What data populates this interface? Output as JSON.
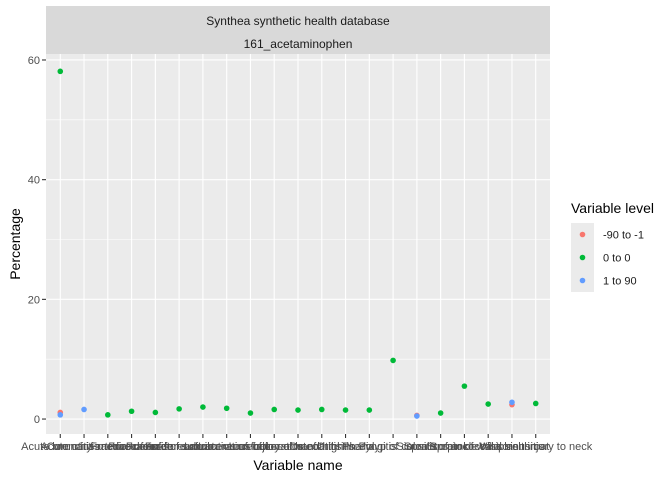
{
  "chart_data": {
    "type": "scatter",
    "facet_labels": [
      "Synthea synthetic health database",
      "161_acetaminophen"
    ],
    "xlabel": "Variable name",
    "ylabel": "Percentage",
    "ylim": [
      -2.5,
      61
    ],
    "y_ticks": [
      0,
      20,
      40,
      60
    ],
    "grid": true,
    "legend": {
      "title": "Variable level",
      "position": "right"
    },
    "categories": [
      "Acute bronchitis",
      "Acute otitis media",
      "Coronary arteriosclerosis",
      "Fracture of ankle",
      "Fracture of forearm",
      "Fracture of rib",
      "Fracture of subcutaneous injury",
      "Laceration of foot",
      "Laceration of forearm",
      "Laceration of hand",
      "Laceration of thigh",
      "Osteoarthritis",
      "Otitis media",
      "Pharyngitis",
      "Polyp of colon",
      "Sinusitis",
      "Sprain of ankle",
      "Sprain of wrist",
      "Streptococcal sore throat",
      "Viral sinusitis",
      "Whiplash injury to neck"
    ],
    "visible_tick_text": [
      "Acute bronchitis",
      "Acute otitis media",
      "Coronary arteriosclerosis",
      "Fracture of ankle",
      "Fracture of forearm",
      "Fracture of rib",
      "Fracture of subcutaneous injury",
      "Laceration of foot",
      "Laceration of forearm",
      "Laceration of hand",
      "Laceration of thigh",
      "Osteoarthritis",
      "Otitis media",
      "Pharyngitis",
      "Polyp of colon",
      "Sinusitis",
      "Sprain of ankle",
      "Sprain of wrist",
      "Streptococcal sore throat",
      "Viral sinusitis",
      "Whiplash injury to neck"
    ],
    "series": [
      {
        "name": "-90 to -1",
        "color": "#F8766D",
        "points": [
          {
            "x": "Acute bronchitis",
            "y": 1.1
          },
          {
            "x": "Sinusitis",
            "y": 0.6
          },
          {
            "x": "Viral sinusitis",
            "y": 2.4
          }
        ]
      },
      {
        "name": "0 to 0",
        "color": "#00BA38",
        "points": [
          {
            "x": "Acute bronchitis",
            "y": 58.1
          },
          {
            "x": "Coronary arteriosclerosis",
            "y": 0.7
          },
          {
            "x": "Fracture of ankle",
            "y": 1.3
          },
          {
            "x": "Fracture of forearm",
            "y": 1.1
          },
          {
            "x": "Fracture of rib",
            "y": 1.7
          },
          {
            "x": "Fracture of subcutaneous injury",
            "y": 2.0
          },
          {
            "x": "Laceration of foot",
            "y": 1.8
          },
          {
            "x": "Laceration of forearm",
            "y": 1.0
          },
          {
            "x": "Laceration of hand",
            "y": 1.6
          },
          {
            "x": "Laceration of thigh",
            "y": 1.5
          },
          {
            "x": "Osteoarthritis",
            "y": 1.6
          },
          {
            "x": "Otitis media",
            "y": 1.5
          },
          {
            "x": "Pharyngitis",
            "y": 1.5
          },
          {
            "x": "Polyp of colon",
            "y": 9.8
          },
          {
            "x": "Sprain of ankle",
            "y": 1.0
          },
          {
            "x": "Sprain of wrist",
            "y": 5.5
          },
          {
            "x": "Streptococcal sore throat",
            "y": 2.5
          },
          {
            "x": "Whiplash injury to neck",
            "y": 2.6
          }
        ]
      },
      {
        "name": "1 to 90",
        "color": "#619CFF",
        "points": [
          {
            "x": "Acute bronchitis",
            "y": 0.7
          },
          {
            "x": "Acute otitis media",
            "y": 1.6
          },
          {
            "x": "Sinusitis",
            "y": 0.5
          },
          {
            "x": "Viral sinusitis",
            "y": 2.8
          }
        ]
      }
    ]
  }
}
